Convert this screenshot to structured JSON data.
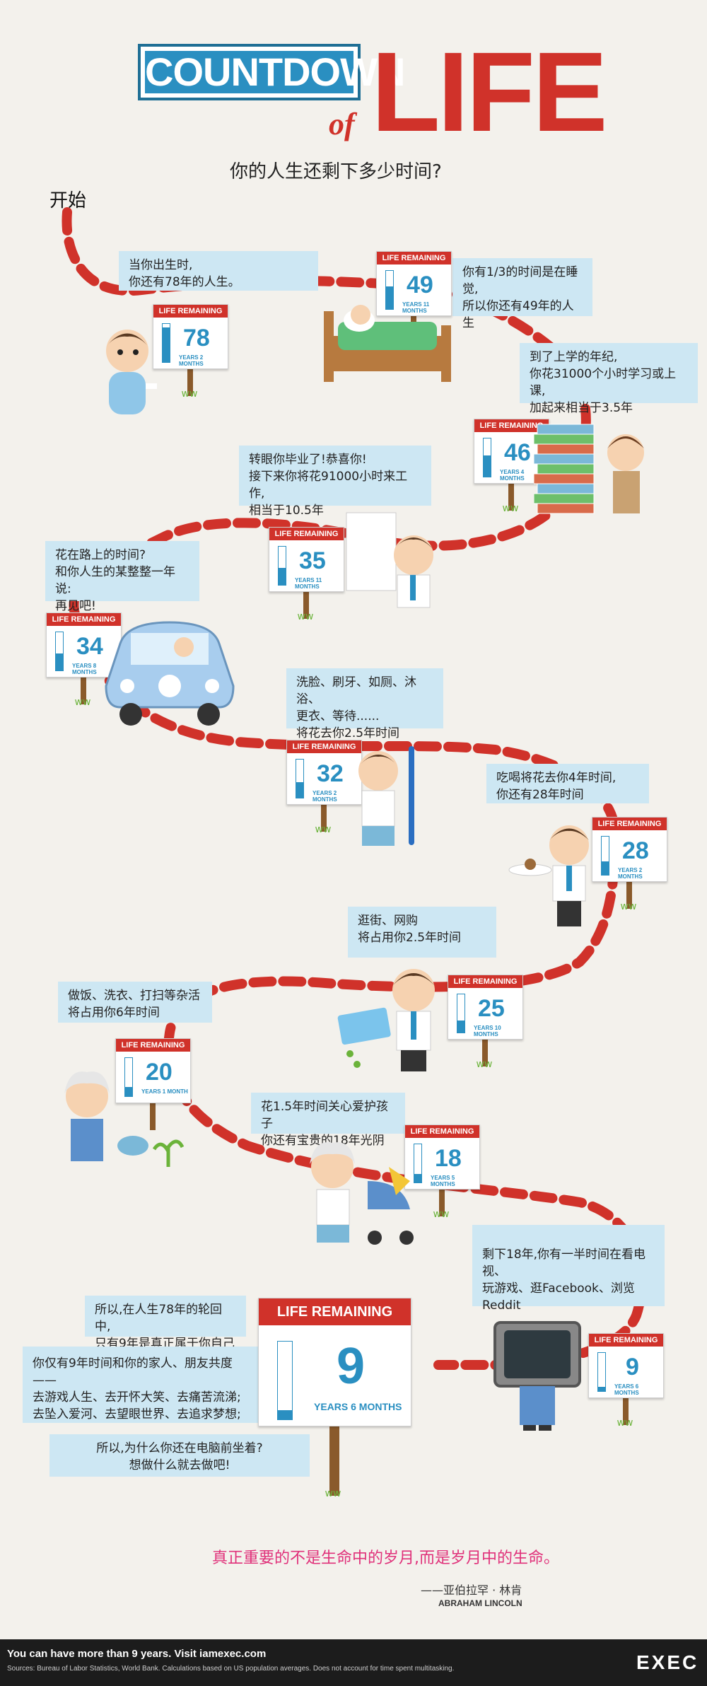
{
  "header": {
    "title_countdown": "COUNTDOWN",
    "title_of": "of",
    "title_life": "LIFE",
    "subtitle": "你的人生还剩下多少时间?",
    "start": "开始"
  },
  "sign_header": "LIFE REMAINING",
  "signs": [
    {
      "years": "78",
      "sub": "YEARS 2 MONTHS",
      "fill": 0.9
    },
    {
      "years": "49",
      "sub": "YEARS 11 MONTHS",
      "fill": 0.6
    },
    {
      "years": "46",
      "sub": "YEARS 4 MONTHS",
      "fill": 0.55
    },
    {
      "years": "35",
      "sub": "YEARS 11 MONTHS",
      "fill": 0.45
    },
    {
      "years": "34",
      "sub": "YEARS 8 MONTHS",
      "fill": 0.44
    },
    {
      "years": "32",
      "sub": "YEARS 2 MONTHS",
      "fill": 0.4
    },
    {
      "years": "28",
      "sub": "YEARS 2 MONTHS",
      "fill": 0.35
    },
    {
      "years": "25",
      "sub": "YEARS 10 MONTHS",
      "fill": 0.32
    },
    {
      "years": "20",
      "sub": "YEARS 1 MONTH",
      "fill": 0.25
    },
    {
      "years": "18",
      "sub": "YEARS 5 MONTHS",
      "fill": 0.22
    },
    {
      "years": "9",
      "sub": "YEARS 6 MONTHS",
      "fill": 0.12
    },
    {
      "years": "9",
      "sub": "YEARS 6 MONTHS",
      "fill": 0.12
    }
  ],
  "panels": {
    "p1": "当你出生时,\n你还有78年的人生。",
    "p2": "你有1/3的时间是在睡觉,\n所以你还有49年的人生",
    "p3": "到了上学的年纪,\n你花31000个小时学习或上课,\n加起来相当于3.5年",
    "p4": "转眼你毕业了!恭喜你!\n接下来你将花91000小时来工作,\n相当于10.5年",
    "p5": "花在路上的时间?\n和你人生的某整整一年说:\n再见吧!",
    "p6": "洗脸、刷牙、如厕、沐浴、\n更衣、等待......\n将花去你2.5年时间",
    "p7": "吃喝将花去你4年时间,\n你还有28年时间",
    "p8": "逛街、网购\n将占用你2.5年时间",
    "p9": "做饭、洗衣、打扫等杂活\n将占用你6年时间",
    "p10": "花1.5年时间关心爱护孩子\n你还有宝贵的18年光阴",
    "p11": "剩下18年,你有一半时间在看电视、\n玩游戏、逛Facebook、浏览Reddit",
    "p12": "所以,在人生78年的轮回中,\n只有9年是真正属于你自己的",
    "p13": "你仅有9年时间和你的家人、朋友共度——\n去游戏人生、去开怀大笑、去痛苦流涕;\n去坠入爱河、去望眼世界、去追求梦想;",
    "p14": "所以,为什么你还在电脑前坐着?\n想做什么就去做吧!"
  },
  "quote": {
    "text": "真正重要的不是生命中的岁月,而是岁月中的生命。",
    "author_cn": "——亚伯拉罕 · 林肯",
    "author_en": "ABRAHAM LINCOLN"
  },
  "footer": {
    "main": "You can have more than 9 years. Visit iamexec.com",
    "sources": "Sources: Bureau of Labor Statistics, World Bank. Calculations based on US population averages. Does not account for time spent multitasking.",
    "logo": "EXEC"
  },
  "colors": {
    "accent_red": "#d0322a",
    "accent_blue": "#2a8fc1",
    "panel": "#cde7f3",
    "quote": "#e0317a"
  }
}
